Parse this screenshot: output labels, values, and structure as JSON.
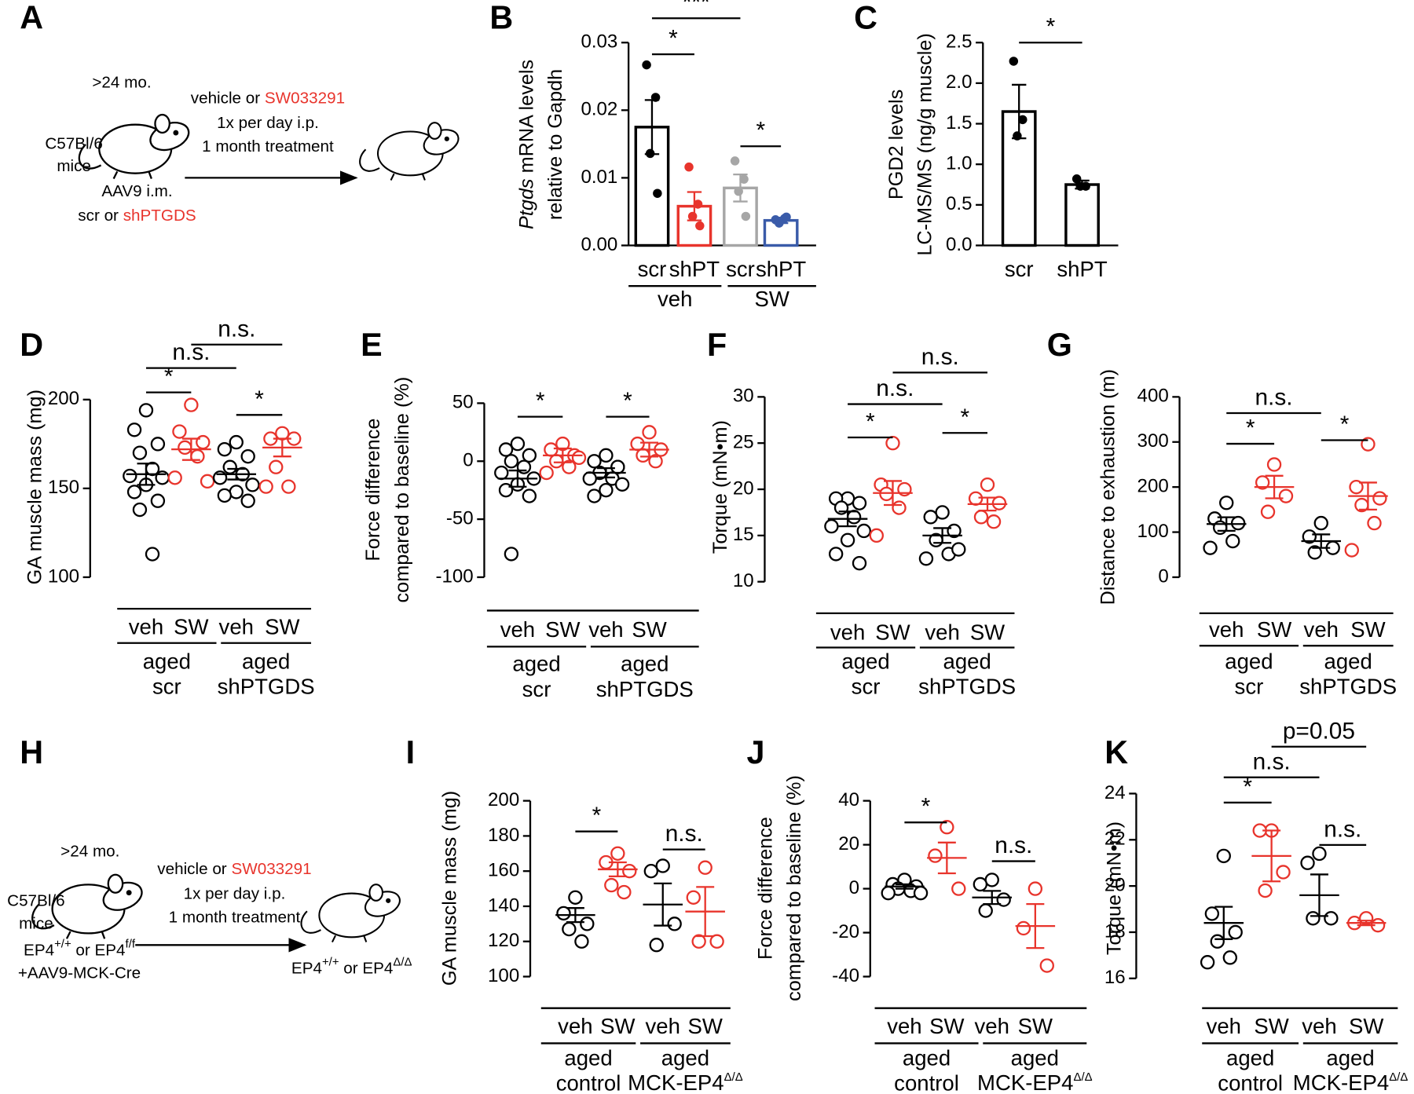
{
  "diagrams": [
    {
      "panel_label": "A",
      "age": ">24 mo.",
      "strain": "C57Bl/6",
      "mice": "mice",
      "injection": "AAV9 i.m.",
      "construct": [
        "scr or ",
        "shPTGDS"
      ],
      "treatment": [
        "vehicle or ",
        "SW033291"
      ],
      "dosing": "1x per day i.p.",
      "duration": "1 month treatment"
    },
    {
      "panel_label": "H",
      "age": ">24 mo.",
      "strain": "C57Bl/6",
      "mice": "mice",
      "genotype": [
        "EP4",
        "+/+",
        " or EP4",
        "f/f"
      ],
      "injection": "+AAV9-MCK-Cre",
      "treatment": [
        "vehicle or ",
        "SW033291"
      ],
      "dosing": "1x per day i.p.",
      "duration": "1 month treatment",
      "outcome": [
        "EP4",
        "+/+",
        " or EP4",
        "Δ/Δ"
      ]
    }
  ],
  "chart_data": [
    {
      "type": "bar",
      "panel_label": "B",
      "y_label": [
        [
          "Ptgds",
          " mRNA levels"
        ],
        "relative to Gapdh"
      ],
      "ylim": [
        0,
        0.03
      ],
      "yticks": [
        {
          "value": 0,
          "label": "0.00"
        },
        0.01,
        0.02,
        0.03
      ],
      "categories": [
        "scr",
        "shPT",
        "scr",
        "shPT"
      ],
      "groups": [
        [
          "veh"
        ],
        [
          "SW"
        ]
      ],
      "data": [
        {
          "color": "#000000",
          "points": [
            0.0267,
            0.0219,
            0.0136,
            0.0077
          ],
          "mean": 0.0175,
          "sem": 0.004
        },
        {
          "color": "#e8342c",
          "points": [
            0.0116,
            0.0061,
            0.0043,
            0.0029
          ],
          "mean": 0.0058,
          "sem": 0.0021
        },
        {
          "color": "#a6a6a6",
          "points": [
            0.0125,
            0.0098,
            0.008,
            0.0043
          ],
          "mean": 0.0085,
          "sem": 0.002
        },
        {
          "color": "#3a5ba9",
          "points": [
            0.0038,
            0.004,
            0.0033,
            0.0042
          ],
          "mean": 0.0037,
          "sem": 0.0004
        }
      ],
      "annotations": [
        "*",
        "***",
        "*"
      ]
    },
    {
      "type": "bar",
      "panel_label": "C",
      "y_label": [
        "PGD2 levels",
        "LC-MS/MS (ng/g muscle)"
      ],
      "ylim": [
        0,
        2.5
      ],
      "yticks": [
        {
          "value": 0,
          "label": "0.0"
        },
        0.5,
        {
          "value": 1,
          "label": "1.0"
        },
        1.5,
        {
          "value": 2,
          "label": "2.0"
        },
        2.5
      ],
      "categories": [
        "scr",
        "shPT"
      ],
      "data": [
        {
          "color": "#000000",
          "points": [
            2.27,
            1.55,
            1.35
          ],
          "mean": 1.65,
          "sem": 0.33
        },
        {
          "color": "#000000",
          "points": [
            0.82,
            0.73,
            0.73
          ],
          "mean": 0.75,
          "sem": 0.05
        }
      ],
      "annotations": [
        "*"
      ]
    },
    {
      "type": "dot",
      "panel_label": "D",
      "y_label": [
        "GA muscle mass (mg)"
      ],
      "ylim": [
        100,
        200
      ],
      "yticks": [
        100,
        150,
        200
      ],
      "categories": [
        "veh",
        "SW",
        "veh",
        "SW"
      ],
      "groups": [
        [
          "aged",
          "scr"
        ],
        [
          "aged",
          "shPTGDS"
        ]
      ],
      "data": [
        {
          "color": "#000000",
          "points": [
            194,
            183,
            175,
            170,
            161,
            157,
            156,
            152,
            148,
            143,
            138,
            113
          ],
          "mean": 158,
          "sem": 6
        },
        {
          "color": "#e8342c",
          "points": [
            197,
            182,
            176,
            173,
            168,
            156,
            154
          ],
          "mean": 172,
          "sem": 6
        },
        {
          "color": "#000000",
          "points": [
            176,
            172,
            168,
            162,
            158,
            156,
            152,
            148,
            146,
            143
          ],
          "mean": 158,
          "sem": 3
        },
        {
          "color": "#e8342c",
          "points": [
            181,
            178,
            178,
            162,
            151,
            151
          ],
          "mean": 173,
          "sem": 5
        }
      ],
      "annotations": [
        "*",
        "*",
        "n.s.",
        "n.s."
      ]
    },
    {
      "type": "dot",
      "panel_label": "E",
      "y_label": [
        "Force difference",
        "compared to baseline (%)"
      ],
      "ylim": [
        -100,
        50
      ],
      "yticks": [
        -100,
        -50,
        0,
        50
      ],
      "categories": [
        "veh",
        "SW",
        "veh",
        "SW"
      ],
      "groups": [
        [
          "aged",
          "scr"
        ],
        [
          "aged",
          "shPTGDS"
        ]
      ],
      "data": [
        {
          "color": "#000000",
          "points": [
            15,
            10,
            5,
            0,
            -5,
            -10,
            -15,
            -20,
            -25,
            -30,
            -80
          ],
          "mean": -15,
          "sem": 7
        },
        {
          "color": "#e8342c",
          "points": [
            15,
            10,
            5,
            0,
            -5,
            -10,
            3
          ],
          "mean": 5,
          "sem": 6
        },
        {
          "color": "#000000",
          "points": [
            5,
            0,
            -5,
            -10,
            -15,
            -15,
            -20,
            -25,
            -30,
            -5
          ],
          "mean": -10,
          "sem": 4
        },
        {
          "color": "#e8342c",
          "points": [
            25,
            15,
            10,
            5,
            0
          ],
          "mean": 10,
          "sem": 6
        }
      ],
      "annotations": [
        "*",
        "*"
      ]
    },
    {
      "type": "dot",
      "panel_label": "F",
      "y_label": [
        "Torque (mN•m)"
      ],
      "ylim": [
        10,
        30
      ],
      "yticks": [
        10,
        15,
        20,
        25,
        30
      ],
      "categories": [
        "veh",
        "SW",
        "veh",
        "SW"
      ],
      "groups": [
        [
          "aged",
          "scr"
        ],
        [
          "aged",
          "shPTGDS"
        ]
      ],
      "data": [
        {
          "color": "#000000",
          "points": [
            19,
            19,
            18.5,
            18,
            17,
            16,
            15.5,
            14.5,
            13,
            12
          ],
          "mean": 16.8,
          "sem": 0.8
        },
        {
          "color": "#e8342c",
          "points": [
            25,
            20.5,
            20,
            19.5,
            18,
            15
          ],
          "mean": 19.6,
          "sem": 1.3
        },
        {
          "color": "#000000",
          "points": [
            17.5,
            17,
            15.5,
            14.5,
            13,
            12.5,
            13.5
          ],
          "mean": 15,
          "sem": 0.8
        },
        {
          "color": "#e8342c",
          "points": [
            20.5,
            19,
            18.5,
            17,
            16.5
          ],
          "mean": 18.4,
          "sem": 0.7
        }
      ],
      "annotations": [
        "*",
        "*",
        "n.s.",
        "n.s."
      ]
    },
    {
      "type": "dot",
      "panel_label": "G",
      "y_label": [
        "Distance to exhaustion (m)"
      ],
      "ylim": [
        0,
        400
      ],
      "yticks": [
        0,
        100,
        200,
        300,
        400
      ],
      "categories": [
        "veh",
        "SW",
        "veh",
        "SW"
      ],
      "groups": [
        [
          "aged",
          "scr"
        ],
        [
          "aged",
          "shPTGDS"
        ]
      ],
      "data": [
        {
          "color": "#000000",
          "points": [
            165,
            130,
            120,
            110,
            80,
            65
          ],
          "mean": 118,
          "sem": 15
        },
        {
          "color": "#e8342c",
          "points": [
            250,
            210,
            180,
            145
          ],
          "mean": 200,
          "sem": 25
        },
        {
          "color": "#000000",
          "points": [
            120,
            90,
            65,
            55
          ],
          "mean": 80,
          "sem": 15
        },
        {
          "color": "#e8342c",
          "points": [
            295,
            200,
            175,
            160,
            120,
            60
          ],
          "mean": 180,
          "sem": 30
        }
      ],
      "annotations": [
        "*",
        "*",
        "n.s."
      ]
    },
    {
      "type": "dot",
      "panel_label": "I",
      "y_label": [
        "GA muscle mass (mg)"
      ],
      "ylim": [
        100,
        200
      ],
      "yticks": [
        100,
        120,
        140,
        160,
        180,
        200
      ],
      "categories": [
        "veh",
        "SW",
        "veh",
        "SW"
      ],
      "groups": [
        [
          "aged",
          "control"
        ],
        [
          "aged",
          [
            "MCK-EP4",
            "Δ/Δ"
          ]
        ]
      ],
      "data": [
        {
          "color": "#000000",
          "points": [
            145,
            136,
            130,
            127,
            120
          ],
          "mean": 135,
          "sem": 4
        },
        {
          "color": "#e8342c",
          "points": [
            170,
            165,
            160,
            152,
            148
          ],
          "mean": 161,
          "sem": 4
        },
        {
          "color": "#000000",
          "points": [
            163,
            160,
            130,
            118
          ],
          "mean": 141,
          "sem": 12
        },
        {
          "color": "#e8342c",
          "points": [
            162,
            145,
            120,
            120
          ],
          "mean": 137,
          "sem": 14
        }
      ],
      "annotations": [
        "*",
        "n.s."
      ]
    },
    {
      "type": "dot",
      "panel_label": "J",
      "y_label": [
        "Force difference",
        "compared to baseline (%)"
      ],
      "ylim": [
        -40,
        40
      ],
      "yticks": [
        -40,
        -20,
        0,
        20,
        40
      ],
      "categories": [
        "veh",
        "SW",
        "veh",
        "SW"
      ],
      "groups": [
        [
          "aged",
          "control"
        ],
        [
          "aged",
          [
            "MCK-EP4",
            "Δ/Δ"
          ]
        ]
      ],
      "data": [
        {
          "color": "#000000",
          "points": [
            4,
            2,
            1,
            0,
            -1,
            -2,
            -2
          ],
          "mean": 1,
          "sem": 1
        },
        {
          "color": "#e8342c",
          "points": [
            28,
            15,
            0
          ],
          "mean": 14,
          "sem": 7
        },
        {
          "color": "#000000",
          "points": [
            4,
            2,
            -5,
            -10
          ],
          "mean": -4,
          "sem": 3
        },
        {
          "color": "#e8342c",
          "points": [
            0,
            -18,
            -35
          ],
          "mean": -17,
          "sem": 10
        }
      ],
      "annotations": [
        "*",
        "n.s."
      ]
    },
    {
      "type": "dot",
      "panel_label": "K",
      "y_label": [
        "Torque (mN•m)"
      ],
      "ylim": [
        16,
        24
      ],
      "yticks": [
        16,
        18,
        20,
        22,
        24
      ],
      "categories": [
        "veh",
        "SW",
        "veh",
        "SW"
      ],
      "groups": [
        [
          "aged",
          "control"
        ],
        [
          "aged",
          [
            "MCK-EP4",
            "Δ/Δ"
          ]
        ]
      ],
      "data": [
        {
          "color": "#000000",
          "points": [
            21.3,
            18.8,
            18,
            17.6,
            16.9,
            16.7
          ],
          "mean": 18.4,
          "sem": 0.7
        },
        {
          "color": "#e8342c",
          "points": [
            22.4,
            22.4,
            20.6,
            19.8
          ],
          "mean": 21.3,
          "sem": 1.1
        },
        {
          "color": "#000000",
          "points": [
            21.4,
            21,
            18.6,
            18.6
          ],
          "mean": 19.6,
          "sem": 0.9
        },
        {
          "color": "#e8342c",
          "points": [
            18.6,
            18.4,
            18.3
          ],
          "mean": 18.4,
          "sem": 0.1
        }
      ],
      "annotations": [
        "*",
        "n.s.",
        "n.s.",
        "p=0.05"
      ]
    }
  ]
}
